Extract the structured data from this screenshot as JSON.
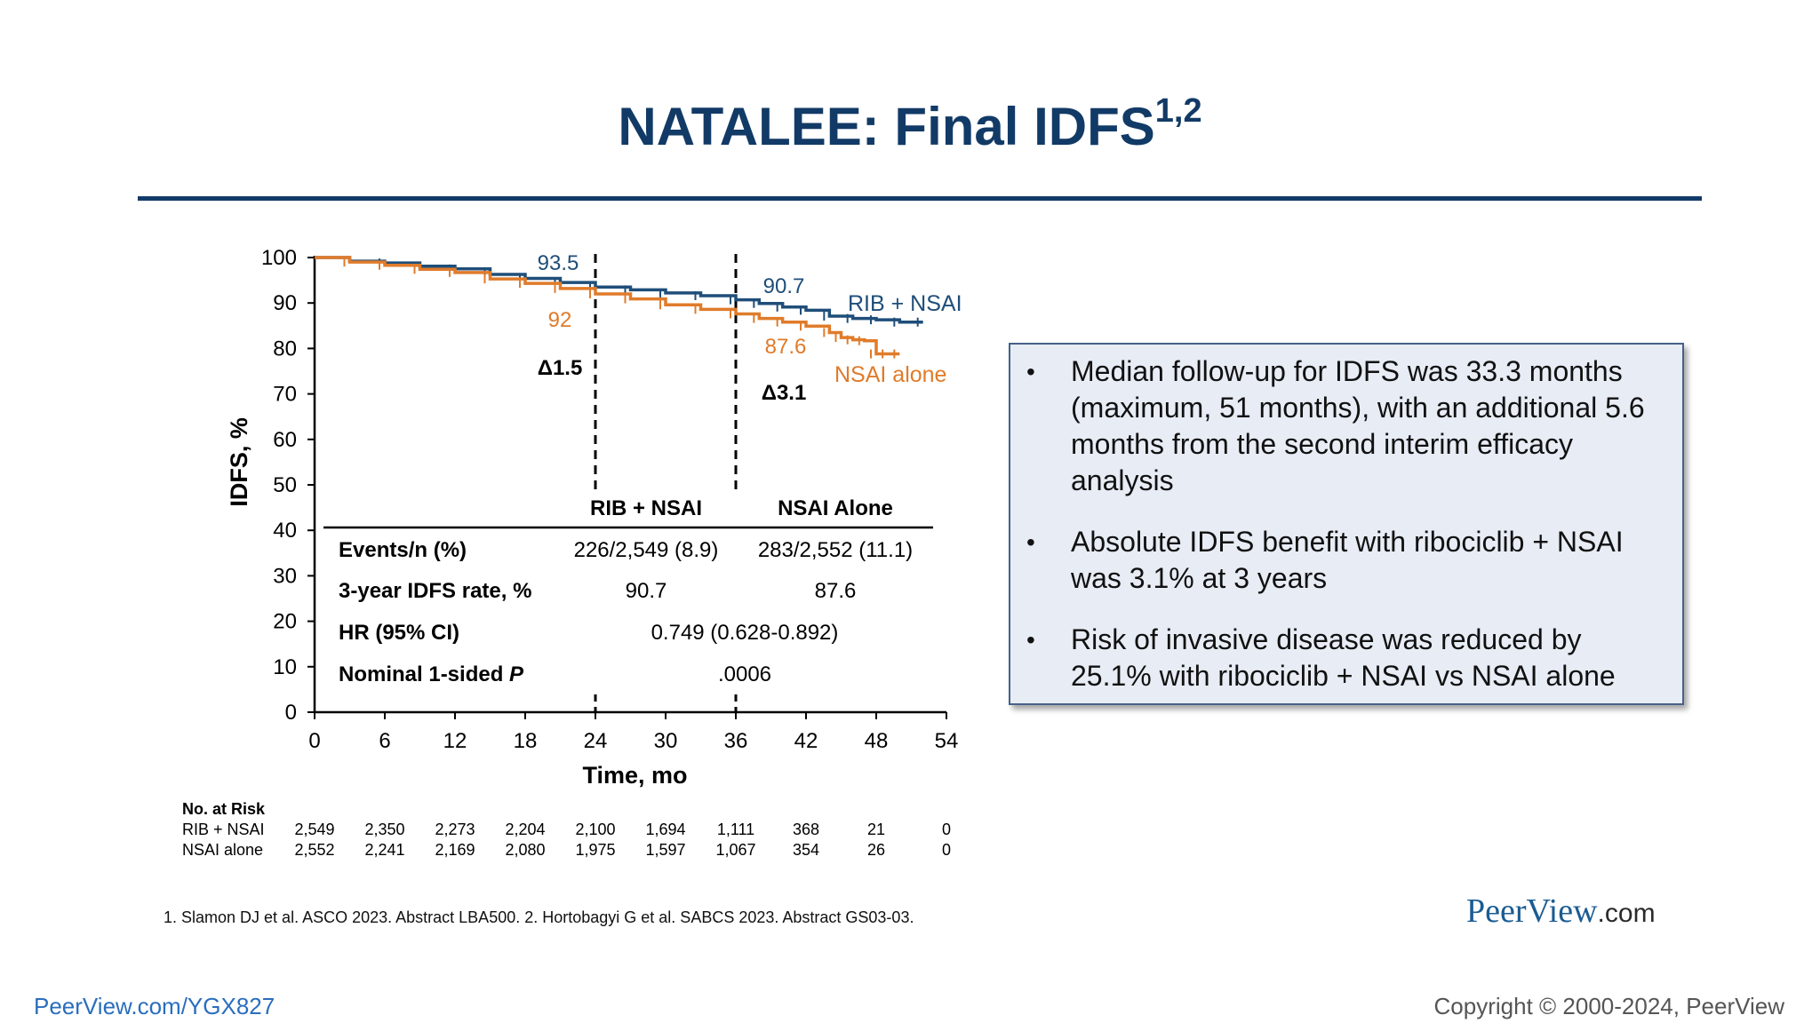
{
  "slide": {
    "title": "NATALEE: Final IDFS",
    "title_sup": "1,2",
    "footnote": "1. Slamon DJ et al. ASCO 2023. Abstract LBA500. 2. Hortobagyi G et al. SABCS 2023. Abstract GS03-03.",
    "brand_main": "PeerView",
    "brand_suffix": ".com",
    "link": "PeerView.com/YGX827",
    "copyright": "Copyright © 2000-2024, PeerView"
  },
  "colors": {
    "rib": "#1f4e79",
    "nsai": "#e07b2a",
    "title": "#123a66",
    "panel_bg": "#e7ecf5",
    "panel_border": "#46618a"
  },
  "chart_data": {
    "type": "line",
    "title": "",
    "xlabel": "Time, mo",
    "ylabel": "IDFS, %",
    "xlim": [
      0,
      54
    ],
    "ylim": [
      0,
      100
    ],
    "xticks": [
      "0",
      "6",
      "12",
      "18",
      "24",
      "30",
      "36",
      "42",
      "48",
      "54"
    ],
    "yticks": [
      "0",
      "10",
      "20",
      "30",
      "40",
      "50",
      "60",
      "70",
      "80",
      "90",
      "100"
    ],
    "series": [
      {
        "name": "RIB + NSAI",
        "color": "#1f4e79",
        "x": [
          0,
          3,
          6,
          9,
          12,
          15,
          18,
          21,
          24,
          27,
          30,
          33,
          36,
          38,
          40,
          42,
          44,
          46,
          48,
          50,
          52
        ],
        "y": [
          100,
          99.2,
          98.8,
          98.1,
          97.5,
          96.3,
          95.4,
          94.5,
          93.5,
          92.9,
          92.2,
          91.6,
          90.7,
          89.9,
          89.1,
          88.4,
          87.1,
          86.6,
          86.3,
          85.8,
          85.8
        ]
      },
      {
        "name": "NSAI alone",
        "color": "#e07b2a",
        "x": [
          0,
          3,
          6,
          9,
          12,
          15,
          18,
          21,
          24,
          27,
          30,
          33,
          36,
          38,
          40,
          42,
          44,
          45,
          46,
          47,
          48,
          49,
          50
        ],
        "y": [
          100,
          99,
          98.3,
          97.4,
          96.7,
          95.3,
          94.3,
          93.2,
          92,
          90.9,
          89.6,
          88.6,
          87.6,
          86.6,
          85.8,
          84.9,
          83.5,
          82.4,
          81.9,
          81.7,
          78.8,
          78.8,
          78.8
        ]
      }
    ],
    "annotations": {
      "rib_24": "93.5",
      "nsai_24": "92",
      "rib_36": "90.7",
      "nsai_36": "87.6",
      "delta_24": "Δ1.5",
      "delta_36": "Δ3.1",
      "series_label_rib": "RIB + NSAI",
      "series_label_nsai": "NSAI alone"
    },
    "table": {
      "col_headers": [
        "RIB + NSAI",
        "NSAI Alone"
      ],
      "rows": [
        {
          "label": "Events/n (%)",
          "rib": "226/2,549 (8.9)",
          "nsai": "283/2,552 (11.1)"
        },
        {
          "label": "3-year IDFS rate, %",
          "rib": "90.7",
          "nsai": "87.6"
        },
        {
          "label": "HR (95% CI)",
          "span": "0.749 (0.628-0.892)"
        },
        {
          "label": "Nominal 1-sided",
          "label_italic": "P",
          "span": ".0006"
        }
      ]
    }
  },
  "risk_table": {
    "header": "No. at Risk",
    "rows": [
      {
        "label": "RIB + NSAI",
        "values": [
          "2,549",
          "2,350",
          "2,273",
          "2,204",
          "2,100",
          "1,694",
          "1,111",
          "368",
          "21",
          "0"
        ]
      },
      {
        "label": "NSAI alone",
        "values": [
          "2,552",
          "2,241",
          "2,169",
          "2,080",
          "1,975",
          "1,597",
          "1,067",
          "354",
          "26",
          "0"
        ]
      }
    ]
  },
  "bullets": [
    "Median follow-up for IDFS was 33.3 months (maximum, 51 months), with an additional 5.6 months from the second interim efficacy analysis",
    "Absolute IDFS benefit with ribociclib + NSAI was 3.1% at 3 years",
    "Risk of invasive disease was reduced by 25.1% with ribociclib + NSAI vs NSAI alone"
  ]
}
